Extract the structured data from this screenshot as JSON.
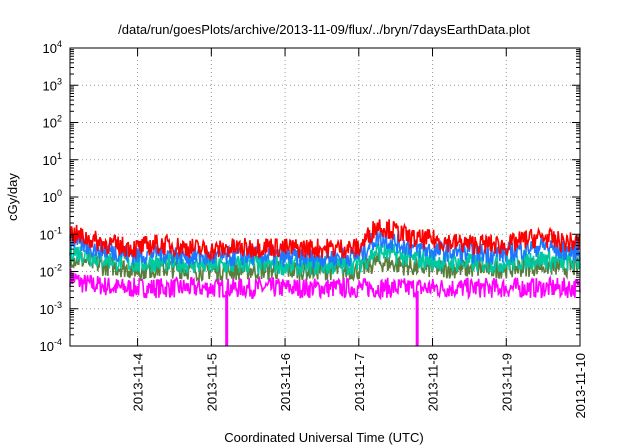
{
  "chart_data": {
    "type": "line",
    "title": "/data/run/goesPlots/archive/2013-11-09/flux/../bryn/7daysEarthData.plot",
    "xlabel": "Coordinated Universal Time (UTC)",
    "ylabel": "cGy/day",
    "yscale": "log",
    "ylim": [
      0.0001,
      10000
    ],
    "xlim": [
      "2013-11-03T02:00",
      "2013-11-10T00:00"
    ],
    "grid": true,
    "y_ticks": [
      {
        "base": "10",
        "exp": "-4",
        "value": 0.0001
      },
      {
        "base": "10",
        "exp": "-3",
        "value": 0.001
      },
      {
        "base": "10",
        "exp": "-2",
        "value": 0.01
      },
      {
        "base": "10",
        "exp": "-1",
        "value": 0.1
      },
      {
        "base": "10",
        "exp": "0",
        "value": 1
      },
      {
        "base": "10",
        "exp": "1",
        "value": 10
      },
      {
        "base": "10",
        "exp": "2",
        "value": 100
      },
      {
        "base": "10",
        "exp": "3",
        "value": 1000
      },
      {
        "base": "10",
        "exp": "4",
        "value": 10000
      }
    ],
    "x_ticks": [
      "2013-11-4",
      "2013-11-5",
      "2013-11-6",
      "2013-11-7",
      "2013-11-8",
      "2013-11-9",
      "2013-11-10"
    ],
    "x_tick_dates": [
      "2013-11-04T00:00",
      "2013-11-05T00:00",
      "2013-11-06T00:00",
      "2013-11-07T00:00",
      "2013-11-08T00:00",
      "2013-11-09T00:00",
      "2013-11-10T00:00"
    ],
    "x": [
      "2013-11-03T02:00",
      "2013-11-03T06:00",
      "2013-11-03T12:00",
      "2013-11-03T18:00",
      "2013-11-04T00:00",
      "2013-11-04T06:00",
      "2013-11-04T12:00",
      "2013-11-04T18:00",
      "2013-11-05T00:00",
      "2013-11-05T06:00",
      "2013-11-05T12:00",
      "2013-11-05T18:00",
      "2013-11-06T00:00",
      "2013-11-06T06:00",
      "2013-11-06T12:00",
      "2013-11-06T18:00",
      "2013-11-07T00:00",
      "2013-11-07T06:00",
      "2013-11-07T12:00",
      "2013-11-07T18:00",
      "2013-11-08T00:00",
      "2013-11-08T06:00",
      "2013-11-08T12:00",
      "2013-11-08T18:00",
      "2013-11-09T00:00",
      "2013-11-09T06:00",
      "2013-11-09T12:00",
      "2013-11-09T18:00",
      "2013-11-10T00:00"
    ],
    "series": [
      {
        "color": "#ff0000",
        "values": [
          0.09,
          0.07,
          0.05,
          0.04,
          0.035,
          0.045,
          0.04,
          0.035,
          0.03,
          0.035,
          0.035,
          0.04,
          0.035,
          0.035,
          0.035,
          0.035,
          0.035,
          0.15,
          0.1,
          0.06,
          0.06,
          0.05,
          0.045,
          0.045,
          0.04,
          0.06,
          0.07,
          0.05,
          0.05
        ]
      },
      {
        "color": "#1e78ff",
        "values": [
          0.06,
          0.045,
          0.032,
          0.028,
          0.022,
          0.028,
          0.024,
          0.022,
          0.02,
          0.02,
          0.022,
          0.022,
          0.02,
          0.02,
          0.02,
          0.021,
          0.022,
          0.07,
          0.05,
          0.035,
          0.03,
          0.028,
          0.026,
          0.026,
          0.025,
          0.035,
          0.04,
          0.03,
          0.03
        ]
      },
      {
        "color": "#00c8a0",
        "values": [
          0.03,
          0.025,
          0.018,
          0.016,
          0.013,
          0.015,
          0.014,
          0.013,
          0.012,
          0.012,
          0.013,
          0.013,
          0.012,
          0.012,
          0.012,
          0.012,
          0.013,
          0.03,
          0.024,
          0.018,
          0.016,
          0.015,
          0.014,
          0.014,
          0.014,
          0.017,
          0.018,
          0.015,
          0.015
        ]
      },
      {
        "color": "#5a7d3c",
        "values": [
          0.02,
          0.017,
          0.012,
          0.011,
          0.009,
          0.01,
          0.01,
          0.009,
          0.009,
          0.009,
          0.009,
          0.009,
          0.009,
          0.009,
          0.009,
          0.009,
          0.009,
          0.015,
          0.013,
          0.011,
          0.01,
          0.01,
          0.01,
          0.01,
          0.01,
          0.011,
          0.012,
          0.011,
          0.011
        ]
      },
      {
        "color": "#ff00ff",
        "values": [
          0.006,
          0.004,
          0.0035,
          0.003,
          0.003,
          0.003,
          0.003,
          0.003,
          0.003,
          0.003,
          0.003,
          0.003,
          0.003,
          0.003,
          0.003,
          0.003,
          0.003,
          0.003,
          0.003,
          0.003,
          0.003,
          0.003,
          0.003,
          0.003,
          0.003,
          0.003,
          0.003,
          0.003,
          0.003
        ]
      }
    ],
    "dropouts": [
      {
        "color": "#ff00ff",
        "x": "2013-11-05T05:00",
        "y": 0.0001
      },
      {
        "color": "#ff00ff",
        "x": "2013-11-07T19:00",
        "y": 0.0001
      }
    ]
  }
}
